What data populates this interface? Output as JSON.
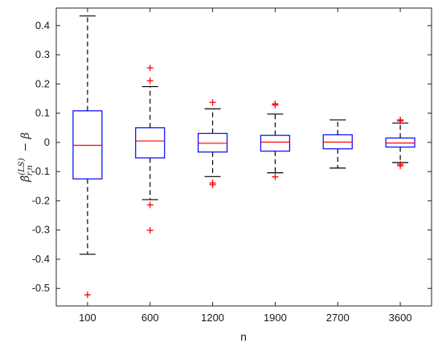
{
  "chart_data": {
    "type": "box",
    "xlabel": "n",
    "ylabel": "β̂(LS)r,n − β",
    "ylim": [
      -0.56,
      0.46
    ],
    "yticks": [
      -0.5,
      -0.4,
      -0.3,
      -0.2,
      -0.1,
      0,
      0.1,
      0.2,
      0.3,
      0.4
    ],
    "ytick_labels": [
      "-0.5",
      "-0.4",
      "-0.3",
      "-0.2",
      "-0.1",
      "0",
      "0.1",
      "0.2",
      "0.3",
      "0.4"
    ],
    "categories": [
      "100",
      "600",
      "1200",
      "1900",
      "2700",
      "3600"
    ],
    "grid": false,
    "colors": {
      "box": "#0000ff",
      "median": "#ff0000",
      "whisker": "#000000",
      "outlier": "#ff0000"
    },
    "boxes": [
      {
        "category": "100",
        "whisker_low": -0.383,
        "q1": -0.125,
        "median": -0.01,
        "q3": 0.108,
        "whisker_high": 0.433,
        "outliers": [
          -0.522
        ]
      },
      {
        "category": "600",
        "whisker_low": -0.196,
        "q1": -0.053,
        "median": 0.005,
        "q3": 0.05,
        "whisker_high": 0.191,
        "outliers": [
          0.255,
          0.211,
          -0.214,
          -0.301
        ]
      },
      {
        "category": "1200",
        "whisker_low": -0.117,
        "q1": -0.033,
        "median": -0.003,
        "q3": 0.031,
        "whisker_high": 0.115,
        "outliers": [
          0.137,
          -0.139,
          -0.145
        ]
      },
      {
        "category": "1900",
        "whisker_low": -0.104,
        "q1": -0.03,
        "median": 0.001,
        "q3": 0.024,
        "whisker_high": 0.097,
        "outliers": [
          0.128,
          0.132,
          -0.118
        ]
      },
      {
        "category": "2700",
        "whisker_low": -0.088,
        "q1": -0.022,
        "median": 0.001,
        "q3": 0.026,
        "whisker_high": 0.077,
        "outliers": []
      },
      {
        "category": "3600",
        "whisker_low": -0.069,
        "q1": -0.016,
        "median": -0.002,
        "q3": 0.015,
        "whisker_high": 0.066,
        "outliers": [
          0.077,
          0.073,
          -0.075,
          -0.08
        ]
      }
    ]
  }
}
